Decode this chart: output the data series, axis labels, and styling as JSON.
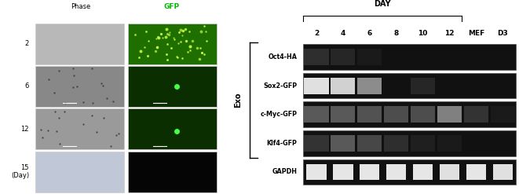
{
  "left_panel": {
    "col_labels": [
      "Phase",
      "GFP"
    ],
    "row_labels": [
      "2",
      "6",
      "12",
      "15\n(Day)"
    ],
    "phase_colors": [
      "#b8b8b8",
      "#888888",
      "#9a9a9a",
      "#c0c8d8"
    ],
    "gfp_colors": [
      "#1f6e00",
      "#0a2e00",
      "#0a2e00",
      "#050505"
    ],
    "gfp_label_color": "#00cc00"
  },
  "right_panel": {
    "day_label": "DAY",
    "col_labels": [
      "2",
      "4",
      "6",
      "8",
      "10",
      "12",
      "MEF",
      "D3"
    ],
    "row_labels": [
      "Oct4-HA",
      "Sox2-GFP",
      "c-Myc-GFP",
      "Klf4-GFP",
      "GAPDH"
    ],
    "bracket_label": "Exo",
    "bands": {
      "Oct4-HA": [
        0.18,
        0.15,
        0.1,
        0.05,
        0.05,
        0.05,
        0.04,
        0.04
      ],
      "Sox2-GFP": [
        0.88,
        0.82,
        0.55,
        0.04,
        0.15,
        0.04,
        0.04,
        0.04
      ],
      "c-Myc-GFP": [
        0.35,
        0.35,
        0.32,
        0.3,
        0.3,
        0.5,
        0.2,
        0.1
      ],
      "Klf4-GFP": [
        0.2,
        0.35,
        0.28,
        0.18,
        0.12,
        0.1,
        0.08,
        0.06
      ],
      "GAPDH": [
        0.9,
        0.9,
        0.9,
        0.9,
        0.9,
        0.88,
        0.9,
        0.88
      ]
    }
  },
  "figure_bg": "#ffffff"
}
